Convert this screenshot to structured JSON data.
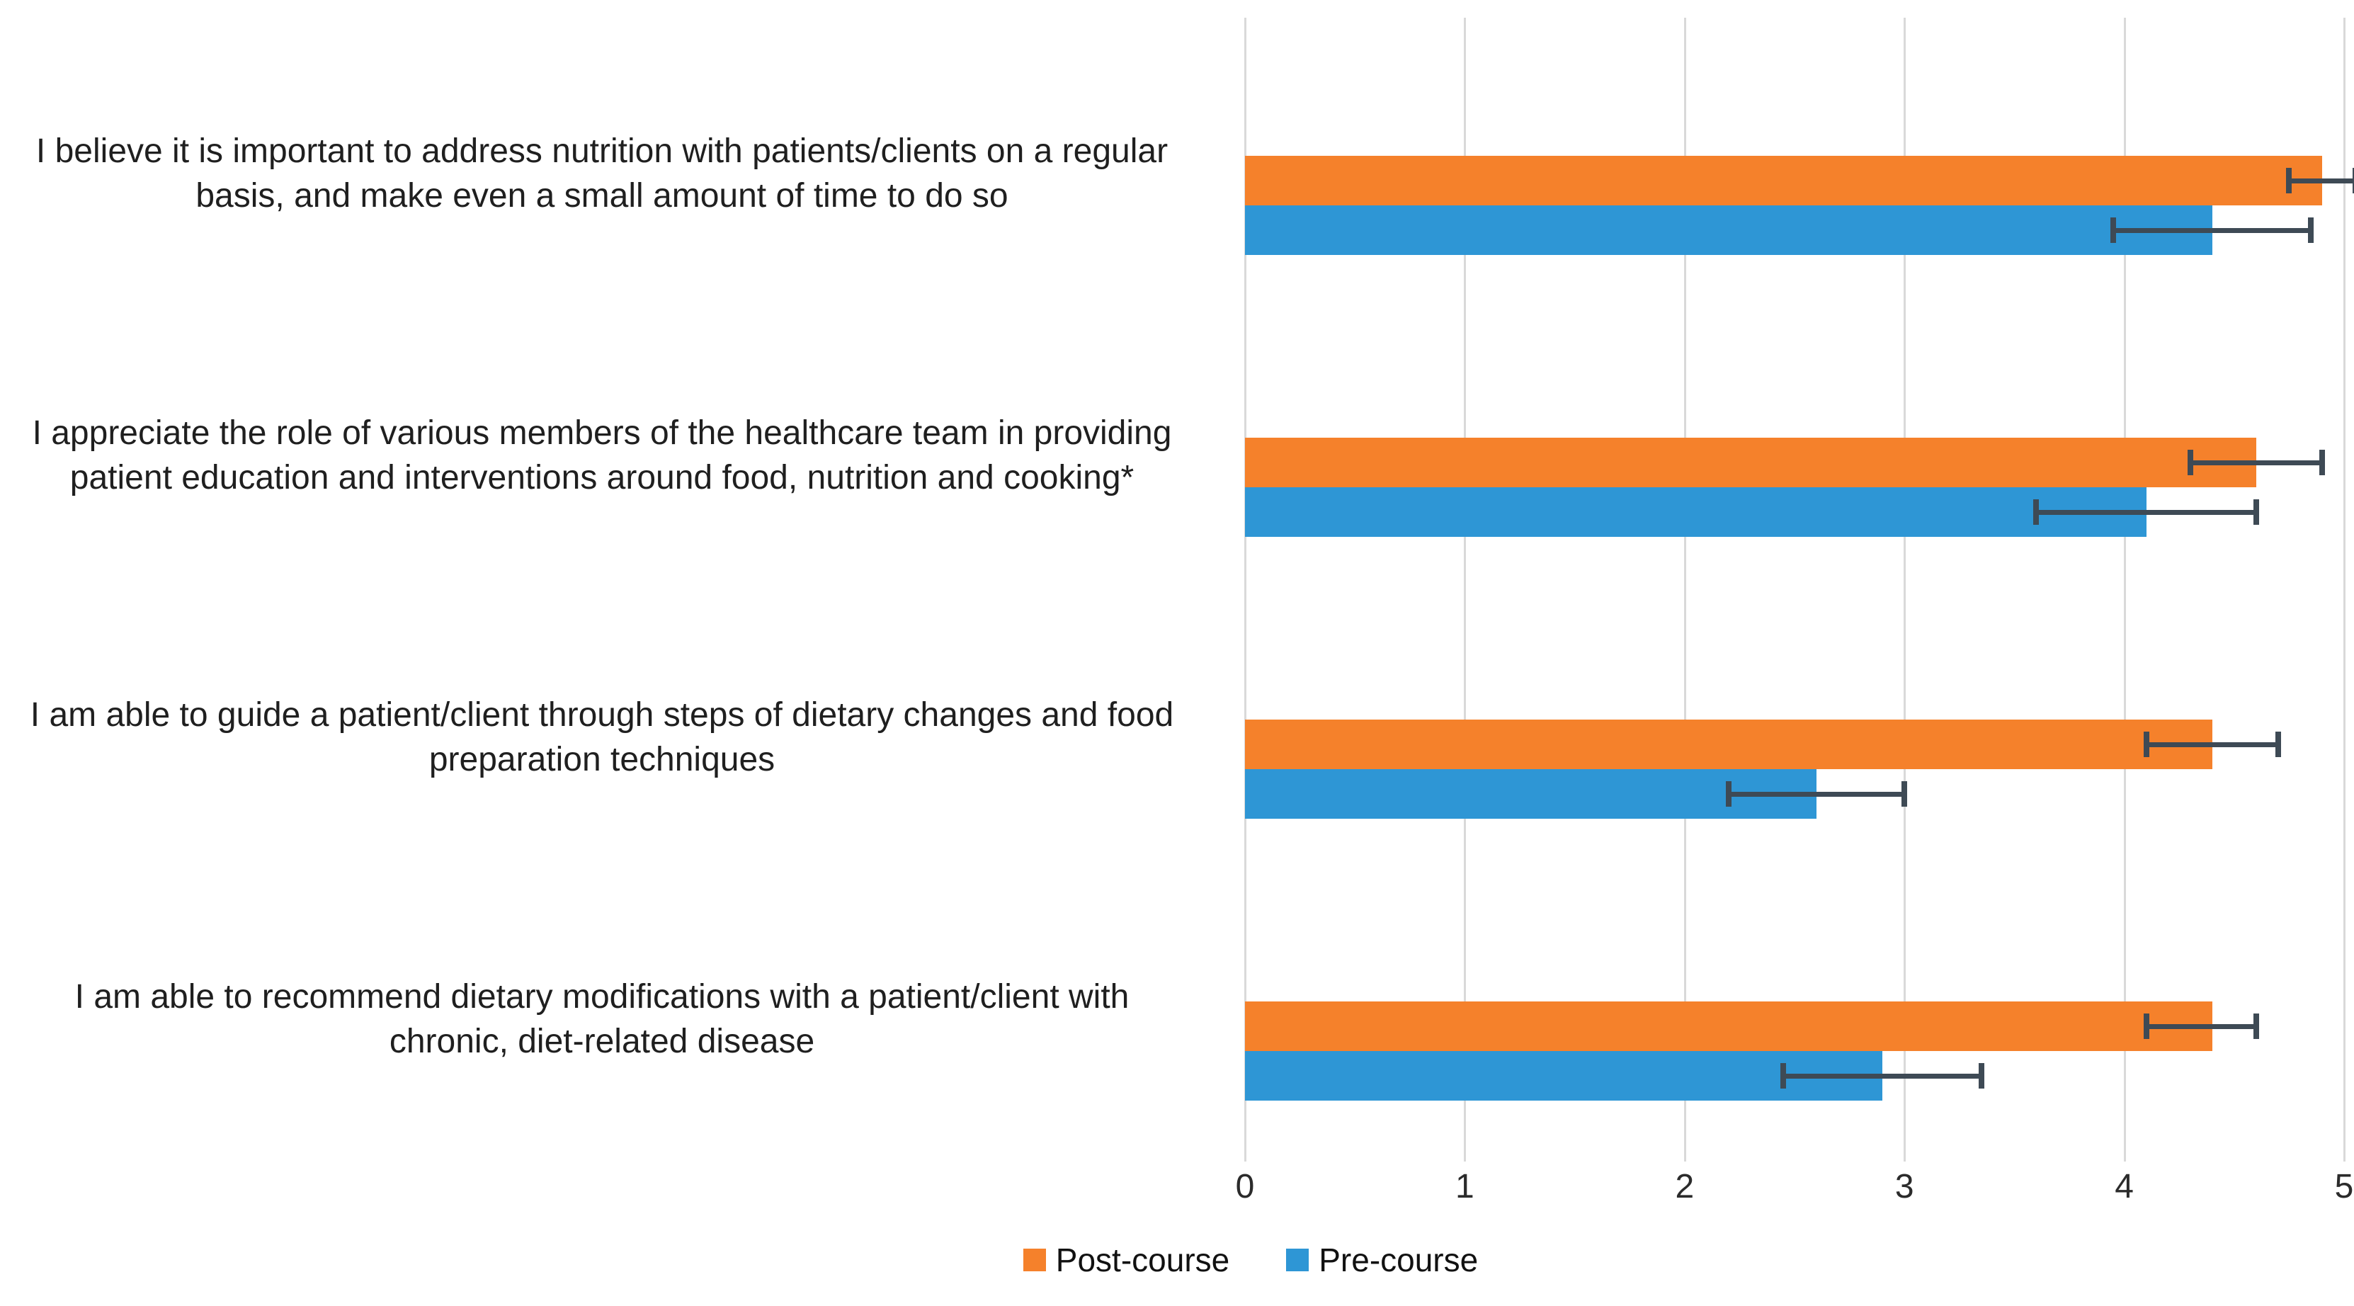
{
  "chart_data": {
    "type": "bar",
    "orientation": "horizontal",
    "title": "",
    "xlabel": "",
    "ylabel": "",
    "xlim": [
      0,
      5
    ],
    "x_ticks": [
      "0",
      "1",
      "2",
      "3",
      "4",
      "5"
    ],
    "grid": true,
    "gridline_color": "#d9d9d9",
    "error_bar_color": "#3e4a55",
    "legend_position": "bottom",
    "categories": [
      "I believe it is important to address nutrition with patients/clients on a regular basis, and make even a small amount of time to do so",
      "I appreciate the role of various members of the healthcare team in providing patient education and interventions around food, nutrition and cooking*",
      "I am able to guide a patient/client through steps of dietary changes and food preparation techniques",
      "I am able to recommend dietary modifications with a patient/client with chronic, diet-related disease"
    ],
    "series": [
      {
        "name": "Post-course",
        "color": "#f5812b",
        "values": [
          4.9,
          4.6,
          4.4,
          4.4
        ],
        "error_low": [
          4.75,
          4.3,
          4.1,
          4.1
        ],
        "error_high": [
          5.05,
          4.9,
          4.7,
          4.6
        ]
      },
      {
        "name": "Pre-course",
        "color": "#2e96d5",
        "values": [
          4.4,
          4.1,
          2.6,
          2.9
        ],
        "error_low": [
          3.95,
          3.6,
          2.2,
          2.45
        ],
        "error_high": [
          4.85,
          4.6,
          3.0,
          3.35
        ]
      }
    ]
  }
}
